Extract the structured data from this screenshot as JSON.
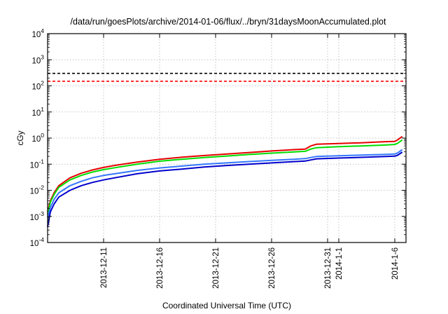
{
  "chart_data": {
    "type": "line",
    "title": "/data/run/goesPlots/archive/2014-01-06/flux/../bryn/31daysMoonAccumulated.plot",
    "xlabel": "Coordinated Universal Time (UTC)",
    "ylabel": "cGy",
    "yscale": "log",
    "ylim": [
      0.0001,
      10000
    ],
    "y_ticks": [
      {
        "value": 0.0001,
        "base": "10",
        "exp": "-4"
      },
      {
        "value": 0.001,
        "base": "10",
        "exp": "-3"
      },
      {
        "value": 0.01,
        "base": "10",
        "exp": "-2"
      },
      {
        "value": 0.1,
        "base": "10",
        "exp": "-1"
      },
      {
        "value": 1,
        "base": "10",
        "exp": "0"
      },
      {
        "value": 10,
        "base": "10",
        "exp": "1"
      },
      {
        "value": 100,
        "base": "10",
        "exp": "2"
      },
      {
        "value": 1000,
        "base": "10",
        "exp": "3"
      },
      {
        "value": 10000,
        "base": "10",
        "exp": "4"
      }
    ],
    "xlim": [
      "2013-12-06",
      "2014-01-07"
    ],
    "x_ticks": [
      {
        "date": "2013-12-11",
        "label": "2013-12-11"
      },
      {
        "date": "2013-12-16",
        "label": "2013-12-16"
      },
      {
        "date": "2013-12-21",
        "label": "2013-12-21"
      },
      {
        "date": "2013-12-26",
        "label": "2013-12-26"
      },
      {
        "date": "2013-12-31",
        "label": "2013-12-31"
      },
      {
        "date": "2014-01-01",
        "label": "2014-1-1"
      },
      {
        "date": "2014-01-06",
        "label": "2014-1-6"
      }
    ],
    "grid": true,
    "thresholds": [
      {
        "value": 300,
        "color": "#000000",
        "style": "dashed"
      },
      {
        "value": 150,
        "color": "#ff0000",
        "style": "dashed"
      }
    ],
    "series": [
      {
        "color": "#e60000",
        "x": [
          "2013-12-06",
          "2013-12-06T06:00",
          "2013-12-06T14:00",
          "2013-12-07",
          "2013-12-08",
          "2013-12-09",
          "2013-12-10",
          "2013-12-11",
          "2013-12-12",
          "2013-12-14",
          "2013-12-16",
          "2013-12-18",
          "2013-12-20",
          "2013-12-22",
          "2013-12-24",
          "2013-12-26",
          "2013-12-28",
          "2013-12-29",
          "2013-12-29T12:00",
          "2013-12-30",
          "2014-01-01",
          "2014-01-03",
          "2014-01-05",
          "2014-01-06",
          "2014-01-06T06:00",
          "2014-01-06T16:00"
        ],
        "values": [
          0.0015,
          0.004,
          0.008,
          0.015,
          0.03,
          0.045,
          0.06,
          0.075,
          0.09,
          0.12,
          0.155,
          0.185,
          0.215,
          0.245,
          0.28,
          0.32,
          0.36,
          0.38,
          0.5,
          0.58,
          0.62,
          0.66,
          0.72,
          0.75,
          0.85,
          1.15
        ]
      },
      {
        "color": "#00dd00",
        "x": [
          "2013-12-06",
          "2013-12-06T06:00",
          "2013-12-06T14:00",
          "2013-12-07",
          "2013-12-08",
          "2013-12-09",
          "2013-12-10",
          "2013-12-11",
          "2013-12-12",
          "2013-12-14",
          "2013-12-16",
          "2013-12-18",
          "2013-12-20",
          "2013-12-22",
          "2013-12-24",
          "2013-12-26",
          "2013-12-28",
          "2013-12-29",
          "2013-12-29T12:00",
          "2013-12-30",
          "2014-01-01",
          "2014-01-03",
          "2014-01-05",
          "2014-01-06",
          "2014-01-06T06:00",
          "2014-01-06T16:00"
        ],
        "values": [
          0.0012,
          0.0035,
          0.007,
          0.013,
          0.025,
          0.037,
          0.05,
          0.062,
          0.073,
          0.1,
          0.13,
          0.155,
          0.18,
          0.205,
          0.235,
          0.265,
          0.295,
          0.31,
          0.38,
          0.43,
          0.47,
          0.5,
          0.54,
          0.57,
          0.63,
          0.85
        ]
      },
      {
        "color": "#3377ff",
        "x": [
          "2013-12-06",
          "2013-12-06T06:00",
          "2013-12-06T14:00",
          "2013-12-07",
          "2013-12-08",
          "2013-12-09",
          "2013-12-10",
          "2013-12-11",
          "2013-12-12",
          "2013-12-14",
          "2013-12-16",
          "2013-12-18",
          "2013-12-20",
          "2013-12-22",
          "2013-12-24",
          "2013-12-26",
          "2013-12-28",
          "2013-12-29",
          "2013-12-29T12:00",
          "2013-12-30",
          "2014-01-01",
          "2014-01-03",
          "2014-01-05",
          "2014-01-06",
          "2014-01-06T06:00",
          "2014-01-06T16:00"
        ],
        "values": [
          0.0009,
          0.0022,
          0.0045,
          0.008,
          0.015,
          0.022,
          0.03,
          0.037,
          0.043,
          0.058,
          0.072,
          0.085,
          0.1,
          0.112,
          0.126,
          0.14,
          0.155,
          0.163,
          0.18,
          0.197,
          0.21,
          0.222,
          0.236,
          0.245,
          0.27,
          0.36
        ]
      },
      {
        "color": "#0000cc",
        "x": [
          "2013-12-06",
          "2013-12-06T06:00",
          "2013-12-06T14:00",
          "2013-12-07",
          "2013-12-08",
          "2013-12-09",
          "2013-12-10",
          "2013-12-11",
          "2013-12-12",
          "2013-12-14",
          "2013-12-16",
          "2013-12-18",
          "2013-12-20",
          "2013-12-22",
          "2013-12-24",
          "2013-12-26",
          "2013-12-28",
          "2013-12-29",
          "2013-12-29T12:00",
          "2013-12-30",
          "2014-01-01",
          "2014-01-03",
          "2014-01-05",
          "2014-01-06",
          "2014-01-06T06:00",
          "2014-01-06T16:00"
        ],
        "values": [
          0.0004,
          0.0015,
          0.003,
          0.0055,
          0.01,
          0.015,
          0.02,
          0.025,
          0.03,
          0.043,
          0.055,
          0.065,
          0.078,
          0.089,
          0.1,
          0.112,
          0.125,
          0.132,
          0.145,
          0.16,
          0.172,
          0.183,
          0.195,
          0.203,
          0.22,
          0.29
        ]
      }
    ]
  }
}
